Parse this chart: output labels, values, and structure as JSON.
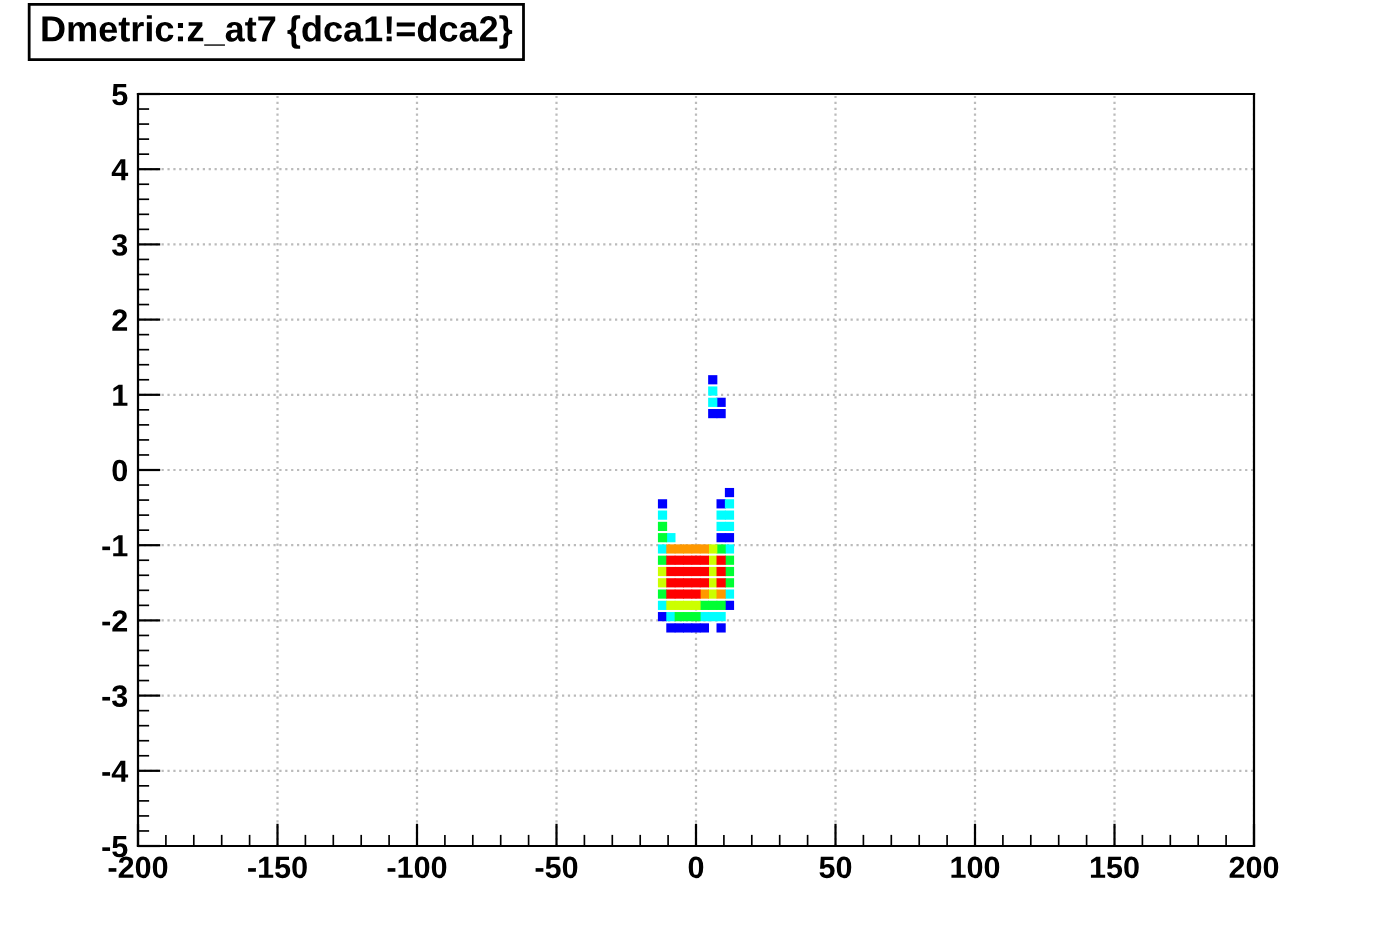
{
  "chart_data": {
    "type": "scatter",
    "title": "Dmetric:z_at7 {dca1!=dca2}",
    "marker": "square",
    "grid": true,
    "xlim": [
      -200,
      200
    ],
    "xticks": [
      -200,
      -150,
      -100,
      -50,
      0,
      50,
      100,
      150,
      200
    ],
    "ylim": [
      -5,
      5
    ],
    "yticks": [
      -5,
      -4,
      -3,
      -2,
      -1,
      0,
      1,
      2,
      3,
      4,
      5
    ],
    "series": [
      {
        "color": "#0000ff",
        "x": [
          6,
          6,
          9,
          9,
          -12,
          9,
          9,
          12,
          12,
          12,
          -12,
          -9,
          -6,
          -3,
          0,
          3,
          9
        ],
        "values": [
          1.2,
          0.75,
          0.9,
          0.75,
          -0.45,
          -0.45,
          -0.9,
          -0.3,
          -0.9,
          -1.8,
          -1.95,
          -2.1,
          -2.1,
          -2.1,
          -2.1,
          -2.1,
          -2.1
        ]
      },
      {
        "color": "#00ffff",
        "x": [
          6,
          6,
          -12,
          -9,
          9,
          9,
          12,
          12,
          12,
          -12,
          12,
          12,
          -12,
          -9,
          3,
          6,
          9
        ],
        "values": [
          1.05,
          0.9,
          -0.6,
          -0.9,
          -0.6,
          -0.75,
          -0.45,
          -0.6,
          -0.75,
          -1.05,
          -1.05,
          -1.65,
          -1.8,
          -1.95,
          -1.95,
          -1.95,
          -1.95
        ]
      },
      {
        "color": "#00ff33",
        "x": [
          -12,
          -12,
          9,
          -12,
          12,
          12,
          12,
          -12,
          3,
          6,
          9,
          -6,
          -3,
          0
        ],
        "values": [
          -0.75,
          -0.9,
          -1.05,
          -1.2,
          -1.2,
          -1.35,
          -1.5,
          -1.65,
          -1.8,
          -1.8,
          -1.8,
          -1.95,
          -1.95,
          -1.95
        ]
      },
      {
        "color": "#ccff00",
        "x": [
          6,
          6,
          -12,
          6,
          -12,
          6,
          6,
          -9,
          -6,
          -3,
          0
        ],
        "values": [
          -1.05,
          -1.2,
          -1.35,
          -1.35,
          -1.5,
          -1.5,
          -1.65,
          -1.8,
          -1.8,
          -1.8,
          -1.8
        ]
      },
      {
        "color": "#ff9900",
        "x": [
          -9,
          -6,
          -3,
          0,
          3,
          3,
          9
        ],
        "values": [
          -1.05,
          -1.05,
          -1.05,
          -1.05,
          -1.05,
          -1.65,
          -1.65
        ]
      },
      {
        "color": "#ff0000",
        "x": [
          -9,
          -6,
          -3,
          0,
          3,
          9,
          -9,
          -6,
          -3,
          0,
          3,
          9,
          -9,
          -6,
          -3,
          0,
          3,
          9,
          -9,
          -6,
          -3,
          0
        ],
        "values": [
          -1.2,
          -1.2,
          -1.2,
          -1.2,
          -1.2,
          -1.2,
          -1.35,
          -1.35,
          -1.35,
          -1.35,
          -1.35,
          -1.35,
          -1.5,
          -1.5,
          -1.5,
          -1.5,
          -1.5,
          -1.5,
          -1.65,
          -1.65,
          -1.65,
          -1.65
        ]
      }
    ]
  }
}
